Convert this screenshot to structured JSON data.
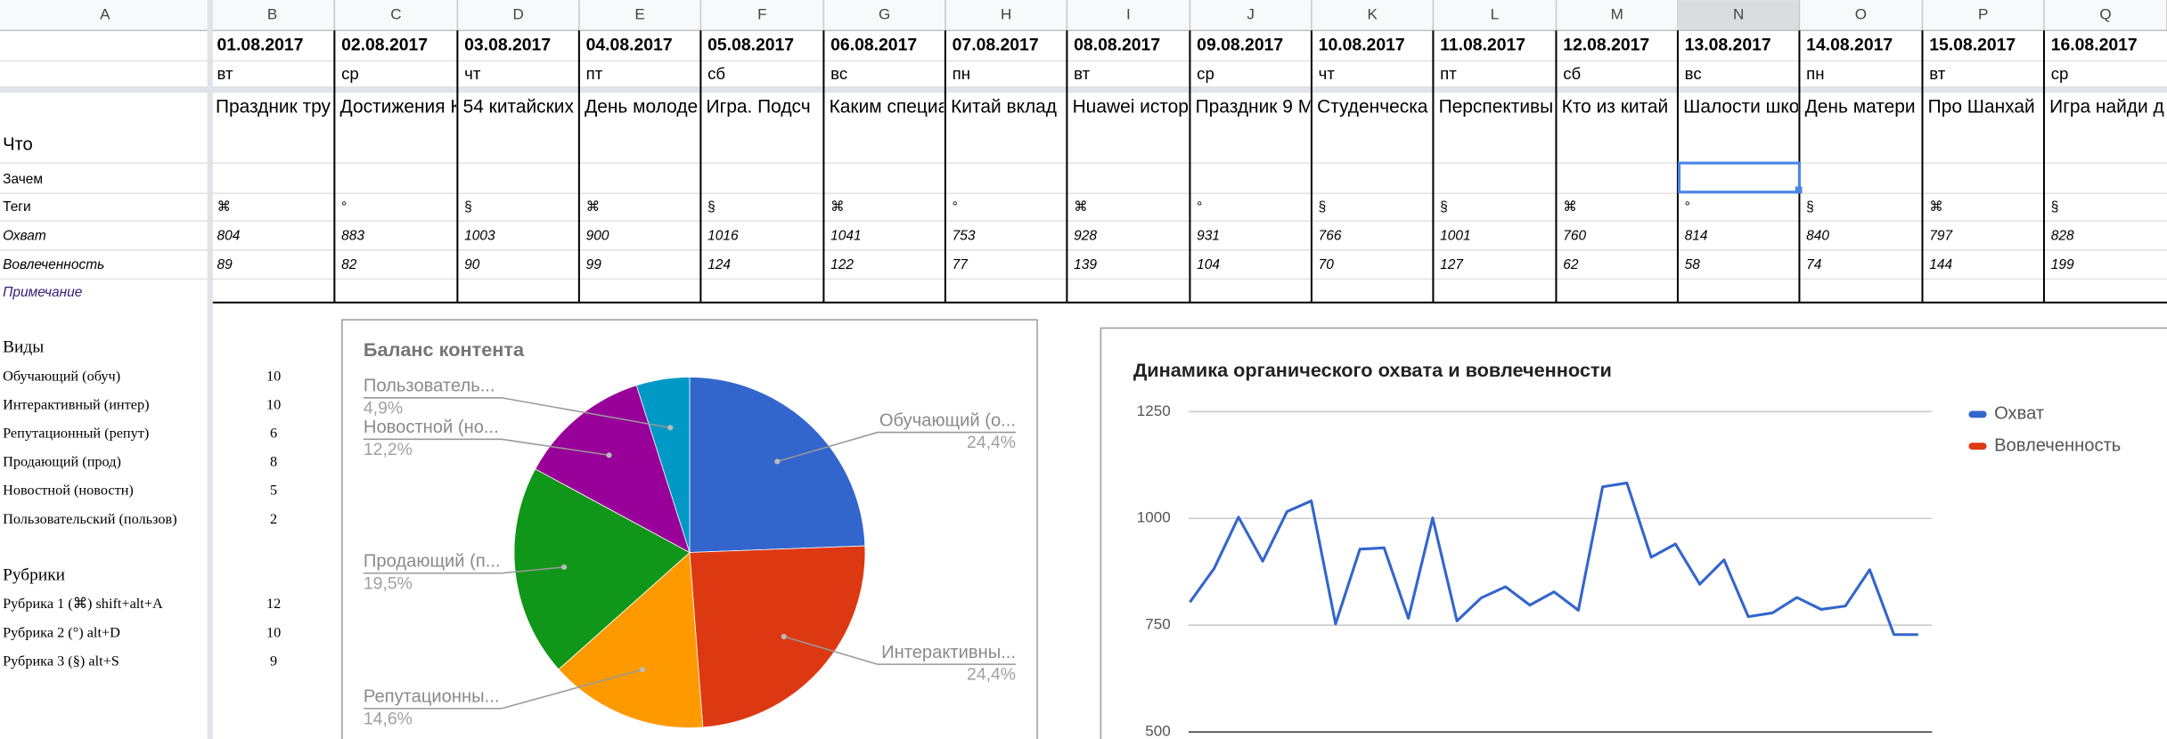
{
  "columns": [
    "A",
    "B",
    "C",
    "D",
    "E",
    "F",
    "G",
    "H",
    "I",
    "J",
    "K",
    "L",
    "M",
    "N",
    "O",
    "P",
    "Q"
  ],
  "table": {
    "dates": [
      "01.08.2017",
      "02.08.2017",
      "03.08.2017",
      "04.08.2017",
      "05.08.2017",
      "06.08.2017",
      "07.08.2017",
      "08.08.2017",
      "09.08.2017",
      "10.08.2017",
      "11.08.2017",
      "12.08.2017",
      "13.08.2017",
      "14.08.2017",
      "15.08.2017",
      "16.08.2017"
    ],
    "weekdays": [
      "вт",
      "ср",
      "чт",
      "пт",
      "сб",
      "вс",
      "пн",
      "вт",
      "ср",
      "чт",
      "пт",
      "сб",
      "вс",
      "пн",
      "вт",
      "ср"
    ],
    "topics": [
      "Праздник тру",
      "Достижения К",
      "54 китайских",
      "День молоде",
      "Игра. Подсч",
      "Каким специа",
      "Китай вклад",
      "Huawei истор",
      "Праздник 9 М",
      "Студенческа",
      "Перспективы",
      "Кто из китай",
      "Шалости шко",
      "День матери",
      "Про Шанхай",
      "Игра найди д"
    ],
    "row_labels": [
      "Что",
      "Зачем",
      "Теги",
      "Охват",
      "Вовлеченность",
      "Примечание"
    ],
    "tags": [
      "⌘",
      "°",
      "§",
      "⌘",
      "§",
      "⌘",
      "°",
      "⌘",
      "°",
      "§",
      "§",
      "⌘",
      "°",
      "§",
      "⌘",
      "§"
    ],
    "reach": [
      804,
      883,
      1003,
      900,
      1016,
      1041,
      753,
      928,
      931,
      766,
      1001,
      760,
      814,
      840,
      797,
      828
    ],
    "engagement": [
      89,
      82,
      90,
      99,
      124,
      122,
      77,
      139,
      104,
      70,
      127,
      62,
      58,
      74,
      144,
      199
    ]
  },
  "types": {
    "title": "Виды",
    "items": [
      {
        "label": "Обучающий (обуч)",
        "count": 10
      },
      {
        "label": "Интерактивный (интер)",
        "count": 10
      },
      {
        "label": "Репутационный (репут)",
        "count": 6
      },
      {
        "label": "Продающий (прод)",
        "count": 8
      },
      {
        "label": "Новостной (новостн)",
        "count": 5
      },
      {
        "label": "Пользовательский (пользов)",
        "count": 2
      }
    ]
  },
  "rubrics": {
    "title": "Рубрики",
    "items": [
      {
        "label": "Рубрика 1 (⌘) shift+alt+A",
        "count": 12
      },
      {
        "label": "Рубрика 2 (°) alt+D",
        "count": 10
      },
      {
        "label": "Рубрика 3 (§) alt+S",
        "count": 9
      }
    ]
  },
  "pie_chart": {
    "type": "pie",
    "title": "Баланс контента",
    "labels": [
      "Обучающий (о...",
      "Интерактивны...",
      "Репутационны...",
      "Продающий (п...",
      "Новостной (но...",
      "Пользователь..."
    ],
    "values": [
      24.4,
      24.4,
      14.6,
      19.5,
      12.2,
      4.9
    ],
    "value_labels": [
      "24,4%",
      "24,4%",
      "14,6%",
      "19,5%",
      "12,2%",
      "4,9%"
    ],
    "colors": [
      "#3366cc",
      "#dc3912",
      "#ff9900",
      "#109618",
      "#990099",
      "#0099c6"
    ]
  },
  "line_chart": {
    "type": "line",
    "title": "Динамика органического охвата и вовлеченности",
    "ylim": [
      500,
      1250
    ],
    "yticks": [
      500,
      750,
      1000,
      1250
    ],
    "grid": true,
    "series": [
      {
        "name": "Охват",
        "color": "#3366cc",
        "values": [
          804,
          883,
          1003,
          900,
          1016,
          1041,
          753,
          928,
          931,
          766,
          1001,
          760,
          814,
          840,
          797,
          828,
          785,
          1074,
          1083,
          909,
          940,
          846,
          903,
          770,
          779,
          815,
          787,
          795,
          880,
          728,
          728
        ]
      },
      {
        "name": "Вовлеченность",
        "color": "#dc3912"
      }
    ]
  }
}
